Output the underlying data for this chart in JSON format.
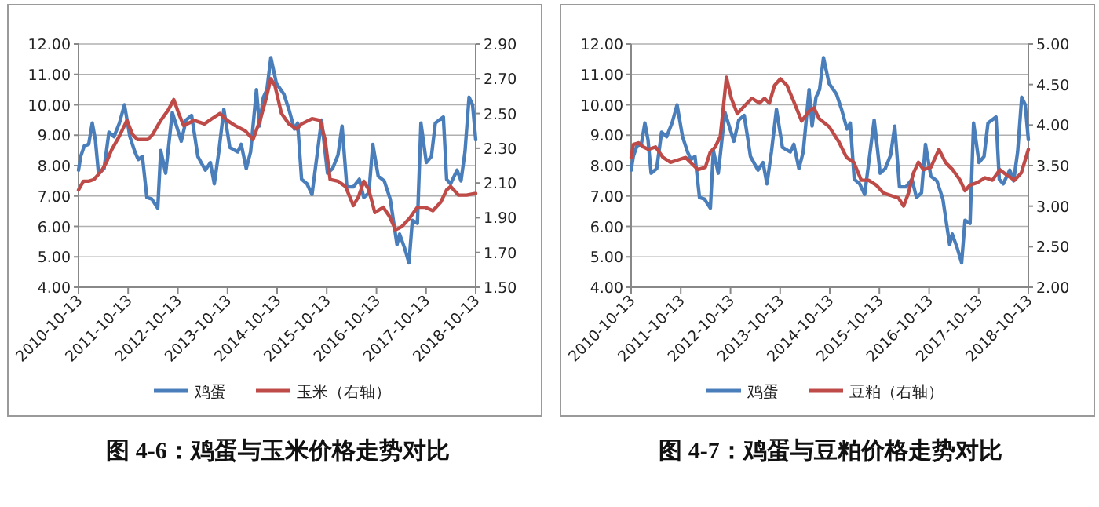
{
  "chart_data": [
    {
      "type": "line",
      "title": "图 4-6：鸡蛋与玉米价格走势对比",
      "legend": "bottom",
      "grid": "y",
      "line_style": "solid",
      "marker": "none",
      "xlim": [
        "2010-10-13",
        "2018-10-13"
      ],
      "xticks": [
        "2010-10-13",
        "2011-10-13",
        "2012-10-13",
        "2013-10-13",
        "2014-10-13",
        "2015-10-13",
        "2016-10-13",
        "2017-10-13",
        "2018-10-13"
      ],
      "ylim": [
        4,
        12
      ],
      "yticks": [
        {
          "value": 4,
          "label": "4.00"
        },
        {
          "value": 5,
          "label": "5.00"
        },
        {
          "value": 6,
          "label": "6.00"
        },
        {
          "value": 7,
          "label": "7.00"
        },
        {
          "value": 8,
          "label": "8.00"
        },
        {
          "value": 9,
          "label": "9.00"
        },
        {
          "value": 10,
          "label": "10.00"
        },
        {
          "value": 11,
          "label": "11.00"
        },
        {
          "value": 12,
          "label": "12.00"
        }
      ],
      "y2lim": [
        1.5,
        2.9
      ],
      "y2ticks": [
        {
          "value": 1.5,
          "label": "1.50"
        },
        {
          "value": 1.7,
          "label": "1.70"
        },
        {
          "value": 1.9,
          "label": "1.90"
        },
        {
          "value": 2.1,
          "label": "2.10"
        },
        {
          "value": 2.3,
          "label": "2.30"
        },
        {
          "value": 2.5,
          "label": "2.50"
        },
        {
          "value": 2.7,
          "label": "2.70"
        },
        {
          "value": 2.9,
          "label": "2.90"
        }
      ],
      "series": [
        {
          "name": "鸡蛋",
          "color": "#4a7ebb",
          "x": [
            "2010-10-13",
            "2010-10-29",
            "2010-11-25",
            "2010-12-27",
            "2011-01-22",
            "2011-02-14",
            "2011-03-09",
            "2011-04-19",
            "2011-05-25",
            "2011-07-01",
            "2011-08-10",
            "2011-09-16",
            "2011-10-26",
            "2011-12-02",
            "2011-12-27",
            "2012-01-26",
            "2012-02-28",
            "2012-04-04",
            "2012-05-18",
            "2012-06-09",
            "2012-07-15",
            "2012-09-02",
            "2012-11-07",
            "2012-12-13",
            "2013-01-22",
            "2013-03-09",
            "2013-05-03",
            "2013-06-09",
            "2013-07-08",
            "2013-08-10",
            "2013-09-16",
            "2013-10-30",
            "2013-12-27",
            "2014-01-22",
            "2014-02-28",
            "2014-04-01",
            "2014-05-14",
            "2014-06-05",
            "2014-07-04",
            "2014-07-30",
            "2014-08-28",
            "2014-10-08",
            "2014-12-02",
            "2015-01-08",
            "2015-02-17",
            "2015-03-13",
            "2015-04-11",
            "2015-05-21",
            "2015-06-27",
            "2015-09-05",
            "2015-10-19",
            "2015-11-25",
            "2016-01-04",
            "2016-02-03",
            "2016-03-09",
            "2016-04-26",
            "2016-06-09",
            "2016-07-12",
            "2016-08-18",
            "2016-09-16",
            "2016-10-26",
            "2016-12-09",
            "2017-01-22",
            "2017-03-13",
            "2017-04-01",
            "2017-05-07",
            "2017-06-09",
            "2017-07-04",
            "2017-08-10",
            "2017-09-05",
            "2017-10-15",
            "2017-11-21",
            "2017-12-20",
            "2018-02-17",
            "2018-03-13",
            "2018-04-11",
            "2018-05-29",
            "2018-06-27",
            "2018-07-26",
            "2018-08-25",
            "2018-09-20",
            "2018-10-13"
          ],
          "values": [
            7.85,
            8.3,
            8.65,
            8.7,
            9.4,
            8.85,
            7.75,
            7.9,
            9.1,
            8.95,
            9.4,
            10.0,
            8.95,
            8.45,
            8.2,
            8.3,
            6.95,
            6.9,
            6.6,
            8.5,
            7.75,
            9.75,
            8.8,
            9.5,
            9.65,
            8.3,
            7.85,
            8.1,
            7.4,
            8.45,
            9.85,
            8.6,
            8.45,
            8.7,
            7.9,
            8.45,
            10.5,
            9.3,
            10.25,
            10.5,
            11.55,
            10.7,
            10.35,
            9.85,
            9.2,
            9.4,
            7.55,
            7.4,
            7.05,
            9.5,
            7.75,
            7.9,
            8.35,
            9.3,
            7.3,
            7.3,
            7.55,
            6.95,
            7.1,
            8.7,
            7.65,
            7.5,
            6.9,
            5.4,
            5.75,
            5.3,
            4.8,
            6.2,
            6.1,
            9.4,
            8.1,
            8.3,
            9.4,
            9.6,
            7.55,
            7.4,
            7.85,
            7.5,
            8.45,
            10.25,
            10.0,
            8.85
          ]
        },
        {
          "name": "玉米（右轴）",
          "color": "#be4b48",
          "axis": "y2",
          "x": [
            "2010-10-13",
            "2010-11-18",
            "2010-12-27",
            "2011-02-03",
            "2011-04-01",
            "2011-05-07",
            "2011-06-13",
            "2011-08-10",
            "2011-10-04",
            "2011-11-14",
            "2011-12-20",
            "2012-03-06",
            "2012-04-11",
            "2012-06-09",
            "2012-08-03",
            "2012-09-13",
            "2012-10-19",
            "2012-11-25",
            "2013-02-10",
            "2013-04-26",
            "2013-06-20",
            "2013-08-18",
            "2013-10-11",
            "2013-12-09",
            "2014-02-21",
            "2014-04-19",
            "2014-06-13",
            "2014-07-22",
            "2014-08-28",
            "2014-09-27",
            "2014-11-14",
            "2015-01-08",
            "2015-03-06",
            "2015-04-11",
            "2015-06-27",
            "2015-08-25",
            "2015-10-01",
            "2015-11-07",
            "2016-01-04",
            "2016-02-28",
            "2016-04-26",
            "2016-06-02",
            "2016-07-12",
            "2016-08-18",
            "2016-10-01",
            "2016-12-02",
            "2017-01-15",
            "2017-03-02",
            "2017-04-19",
            "2017-06-16",
            "2017-08-10",
            "2017-10-08",
            "2017-12-02",
            "2018-01-29",
            "2018-03-13",
            "2018-04-11",
            "2018-06-09",
            "2018-08-07",
            "2018-10-13"
          ],
          "values": [
            2.06,
            2.11,
            2.11,
            2.12,
            2.17,
            2.22,
            2.29,
            2.37,
            2.46,
            2.38,
            2.35,
            2.35,
            2.38,
            2.46,
            2.52,
            2.58,
            2.5,
            2.43,
            2.46,
            2.44,
            2.47,
            2.5,
            2.46,
            2.43,
            2.4,
            2.35,
            2.47,
            2.58,
            2.7,
            2.66,
            2.5,
            2.44,
            2.41,
            2.44,
            2.47,
            2.46,
            2.35,
            2.12,
            2.11,
            2.08,
            1.97,
            2.02,
            2.11,
            2.06,
            1.93,
            1.96,
            1.91,
            1.83,
            1.85,
            1.9,
            1.96,
            1.96,
            1.94,
            1.99,
            2.06,
            2.08,
            2.03,
            2.03,
            2.04
          ]
        }
      ]
    },
    {
      "type": "line",
      "title": "图 4-7：鸡蛋与豆粕价格走势对比",
      "legend": "bottom",
      "grid": "y",
      "line_style": "solid",
      "marker": "none",
      "xlim": [
        "2010-10-13",
        "2018-10-13"
      ],
      "xticks": [
        "2010-10-13",
        "2011-10-13",
        "2012-10-13",
        "2013-10-13",
        "2014-10-13",
        "2015-10-13",
        "2016-10-13",
        "2017-10-13",
        "2018-10-13"
      ],
      "ylim": [
        4,
        12
      ],
      "yticks": [
        {
          "value": 4,
          "label": "4.00"
        },
        {
          "value": 5,
          "label": "5.00"
        },
        {
          "value": 6,
          "label": "6.00"
        },
        {
          "value": 7,
          "label": "7.00"
        },
        {
          "value": 8,
          "label": "8.00"
        },
        {
          "value": 9,
          "label": "9.00"
        },
        {
          "value": 10,
          "label": "10.00"
        },
        {
          "value": 11,
          "label": "11.00"
        },
        {
          "value": 12,
          "label": "12.00"
        }
      ],
      "y2lim": [
        2,
        5
      ],
      "y2ticks": [
        {
          "value": 2,
          "label": "2.00"
        },
        {
          "value": 2.5,
          "label": "2.50"
        },
        {
          "value": 3,
          "label": "3.00"
        },
        {
          "value": 3.5,
          "label": "3.50"
        },
        {
          "value": 4,
          "label": "4.00"
        },
        {
          "value": 4.5,
          "label": "4.50"
        },
        {
          "value": 5,
          "label": "5.00"
        }
      ],
      "series": [
        {
          "name": "鸡蛋",
          "color": "#4a7ebb",
          "x": [
            "2010-10-13",
            "2010-10-29",
            "2010-11-25",
            "2010-12-27",
            "2011-01-22",
            "2011-02-14",
            "2011-03-09",
            "2011-04-19",
            "2011-05-25",
            "2011-07-01",
            "2011-08-10",
            "2011-09-16",
            "2011-10-26",
            "2011-12-02",
            "2011-12-27",
            "2012-01-26",
            "2012-02-28",
            "2012-04-04",
            "2012-05-18",
            "2012-06-09",
            "2012-07-15",
            "2012-09-02",
            "2012-11-07",
            "2012-12-13",
            "2013-01-22",
            "2013-03-09",
            "2013-05-03",
            "2013-06-09",
            "2013-07-08",
            "2013-08-10",
            "2013-09-16",
            "2013-10-30",
            "2013-12-27",
            "2014-01-22",
            "2014-02-28",
            "2014-04-01",
            "2014-05-14",
            "2014-06-05",
            "2014-07-04",
            "2014-07-30",
            "2014-08-28",
            "2014-10-08",
            "2014-12-02",
            "2015-01-08",
            "2015-02-17",
            "2015-03-13",
            "2015-04-11",
            "2015-05-21",
            "2015-06-27",
            "2015-09-05",
            "2015-10-19",
            "2015-11-25",
            "2016-01-04",
            "2016-02-03",
            "2016-03-09",
            "2016-04-26",
            "2016-06-09",
            "2016-07-12",
            "2016-08-18",
            "2016-09-16",
            "2016-10-26",
            "2016-12-09",
            "2017-01-22",
            "2017-03-13",
            "2017-04-01",
            "2017-05-07",
            "2017-06-09",
            "2017-07-04",
            "2017-08-10",
            "2017-09-05",
            "2017-10-15",
            "2017-11-21",
            "2017-12-20",
            "2018-02-17",
            "2018-03-13",
            "2018-04-11",
            "2018-05-29",
            "2018-06-27",
            "2018-07-26",
            "2018-08-25",
            "2018-09-20",
            "2018-10-13"
          ],
          "values": [
            7.85,
            8.3,
            8.65,
            8.7,
            9.4,
            8.85,
            7.75,
            7.9,
            9.1,
            8.95,
            9.4,
            10.0,
            8.95,
            8.45,
            8.2,
            8.3,
            6.95,
            6.9,
            6.6,
            8.5,
            7.75,
            9.75,
            8.8,
            9.5,
            9.65,
            8.3,
            7.85,
            8.1,
            7.4,
            8.45,
            9.85,
            8.6,
            8.45,
            8.7,
            7.9,
            8.45,
            10.5,
            9.3,
            10.25,
            10.5,
            11.55,
            10.7,
            10.35,
            9.85,
            9.2,
            9.4,
            7.55,
            7.4,
            7.05,
            9.5,
            7.75,
            7.9,
            8.35,
            9.3,
            7.3,
            7.3,
            7.55,
            6.95,
            7.1,
            8.7,
            7.65,
            7.5,
            6.9,
            5.4,
            5.75,
            5.3,
            4.8,
            6.2,
            6.1,
            9.4,
            8.1,
            8.3,
            9.4,
            9.6,
            7.55,
            7.4,
            7.85,
            7.5,
            8.45,
            10.25,
            10.0,
            8.85
          ]
        },
        {
          "name": "豆粕（右轴）",
          "color": "#be4b48",
          "axis": "y2",
          "x": [
            "2010-10-13",
            "2010-10-29",
            "2010-12-06",
            "2011-01-11",
            "2011-02-17",
            "2011-04-11",
            "2011-06-05",
            "2011-07-30",
            "2011-09-23",
            "2011-11-18",
            "2012-01-11",
            "2012-02-17",
            "2012-04-11",
            "2012-05-18",
            "2012-06-23",
            "2012-07-30",
            "2012-09-13",
            "2012-10-19",
            "2012-12-02",
            "2013-01-26",
            "2013-03-20",
            "2013-05-14",
            "2013-06-20",
            "2013-07-26",
            "2013-09-02",
            "2013-10-15",
            "2013-12-02",
            "2014-01-26",
            "2014-03-20",
            "2014-05-14",
            "2014-06-20",
            "2014-07-26",
            "2014-10-08",
            "2014-12-20",
            "2015-02-14",
            "2015-04-08",
            "2015-06-02",
            "2015-07-26",
            "2015-09-20",
            "2015-11-14",
            "2016-01-08",
            "2016-03-02",
            "2016-04-08",
            "2016-05-14",
            "2016-06-20",
            "2016-07-26",
            "2016-09-02",
            "2016-10-26",
            "2016-12-24",
            "2017-02-10",
            "2017-04-04",
            "2017-05-29",
            "2017-07-04",
            "2017-08-10",
            "2017-10-04",
            "2017-11-28",
            "2018-01-22",
            "2018-03-17",
            "2018-05-11",
            "2018-07-04",
            "2018-08-22",
            "2018-10-13"
          ],
          "values": [
            3.6,
            3.76,
            3.78,
            3.73,
            3.7,
            3.73,
            3.6,
            3.54,
            3.57,
            3.6,
            3.51,
            3.45,
            3.48,
            3.67,
            3.73,
            3.86,
            4.59,
            4.33,
            4.14,
            4.24,
            4.33,
            4.27,
            4.33,
            4.27,
            4.49,
            4.57,
            4.49,
            4.27,
            4.05,
            4.17,
            4.21,
            4.08,
            3.98,
            3.79,
            3.6,
            3.54,
            3.32,
            3.32,
            3.26,
            3.16,
            3.13,
            3.1,
            3.0,
            3.16,
            3.41,
            3.54,
            3.45,
            3.48,
            3.7,
            3.54,
            3.45,
            3.32,
            3.19,
            3.26,
            3.29,
            3.35,
            3.32,
            3.45,
            3.38,
            3.32,
            3.41,
            3.7
          ]
        }
      ]
    }
  ]
}
